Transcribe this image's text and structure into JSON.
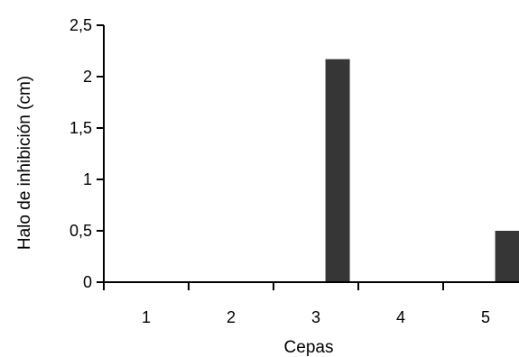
{
  "chart_data": {
    "type": "bar",
    "categories": [
      "1",
      "2",
      "3",
      "4",
      "5"
    ],
    "values": [
      0,
      0,
      2.17,
      0,
      0.5
    ],
    "xlabel": "Cepas",
    "ylabel": "Halo de inhibición (cm)",
    "ylim": [
      0,
      2.5
    ],
    "yticks": [
      0,
      0.5,
      1,
      1.5,
      2,
      2.5
    ],
    "ytick_labels": [
      "0",
      "0,5",
      "1",
      "1,5",
      "2",
      "2,5"
    ],
    "bar_color": "#363636",
    "grid": false,
    "legend": "none"
  }
}
